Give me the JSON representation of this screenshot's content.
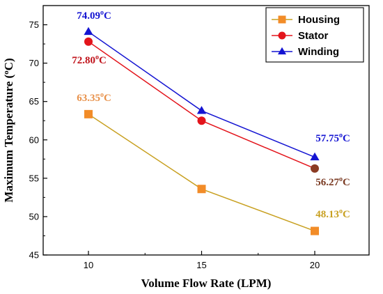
{
  "chart_data": {
    "type": "line",
    "x": [
      10,
      15,
      20
    ],
    "xlabel": "Volume Flow Rate (LPM)",
    "ylabel": "Maximum Temperature (°C)",
    "ylim": [
      45,
      77.5
    ],
    "xlim": [
      8,
      22.4
    ],
    "xticks": [
      10,
      15,
      20
    ],
    "yticks": [
      45,
      50,
      55,
      60,
      65,
      70,
      75
    ],
    "grid": false,
    "legend_position": "top-right",
    "series": [
      {
        "name": "Housing",
        "values": [
          63.35,
          53.6,
          48.13
        ],
        "color": "#c8a020",
        "marker_color": "#f28c28",
        "marker": "square"
      },
      {
        "name": "Stator",
        "values": [
          72.8,
          62.5,
          56.27
        ],
        "color": "#e3141b",
        "marker_color": "#e3141b",
        "marker": "circle"
      },
      {
        "name": "Winding",
        "values": [
          74.09,
          63.8,
          57.75
        ],
        "color": "#1414d2",
        "marker_color": "#1414d2",
        "marker": "triangle"
      }
    ],
    "annotations": [
      {
        "text": "74.09",
        "unit": "oC",
        "color": "#1414d2"
      },
      {
        "text": "72.80",
        "unit": "oC",
        "color": "#c0121a"
      },
      {
        "text": "63.35",
        "unit": "oC",
        "color": "#e8914a"
      },
      {
        "text": "57.75",
        "unit": "oC",
        "color": "#1414d2"
      },
      {
        "text": "56.27",
        "unit": "oC",
        "color": "#7a3a22"
      },
      {
        "text": "48.13",
        "unit": "oC",
        "color": "#c8a020"
      }
    ]
  }
}
